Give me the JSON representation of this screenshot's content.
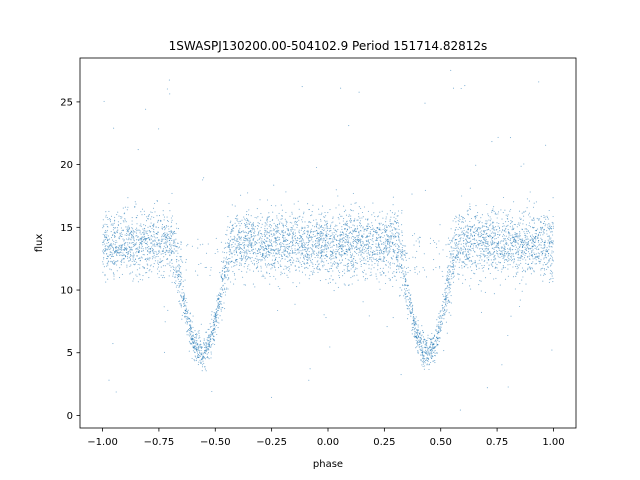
{
  "chart_data": {
    "type": "scatter",
    "title": "1SWASPJ130200.00-504102.9 Period 151714.82812s",
    "xlabel": "phase",
    "ylabel": "flux",
    "xlim": [
      -1.1,
      1.1
    ],
    "ylim": [
      -1.0,
      28.5
    ],
    "x_ticks": [
      -1.0,
      -0.75,
      -0.5,
      -0.25,
      0.0,
      0.25,
      0.5,
      0.75,
      1.0
    ],
    "x_tick_labels": [
      "−1.00",
      "−0.75",
      "−0.50",
      "−0.25",
      "0.00",
      "0.25",
      "0.50",
      "0.75",
      "1.00"
    ],
    "y_ticks": [
      0,
      5,
      10,
      15,
      20,
      25
    ],
    "y_tick_labels": [
      "0",
      "5",
      "10",
      "15",
      "20",
      "25"
    ],
    "grid": false,
    "legend": "none",
    "series": [
      {
        "marker_color": "#1f77b4",
        "phase_range": [
          -1.0,
          1.0
        ],
        "baseline_flux": 13.7,
        "scatter_sigma": 1.3,
        "eclipses": [
          {
            "center_phase": -0.56,
            "min_flux": 5.0,
            "half_width": 0.13
          },
          {
            "center_phase": 0.44,
            "min_flux": 5.0,
            "half_width": 0.13
          }
        ],
        "outlier_range": [
          0.3,
          27.7
        ]
      }
    ]
  }
}
